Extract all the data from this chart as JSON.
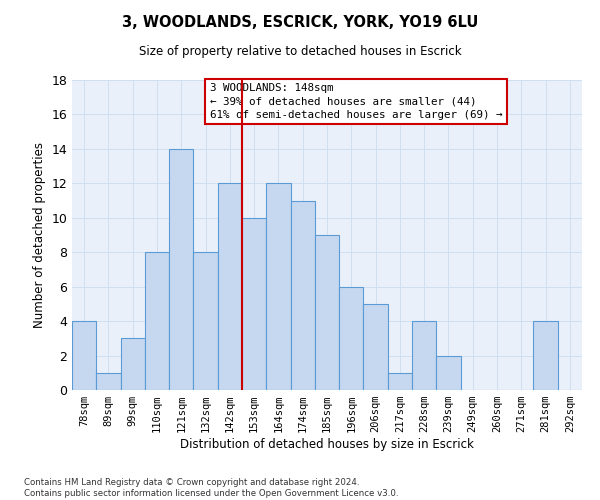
{
  "title1": "3, WOODLANDS, ESCRICK, YORK, YO19 6LU",
  "title2": "Size of property relative to detached houses in Escrick",
  "xlabel": "Distribution of detached houses by size in Escrick",
  "ylabel": "Number of detached properties",
  "bar_labels": [
    "78sqm",
    "89sqm",
    "99sqm",
    "110sqm",
    "121sqm",
    "132sqm",
    "142sqm",
    "153sqm",
    "164sqm",
    "174sqm",
    "185sqm",
    "196sqm",
    "206sqm",
    "217sqm",
    "228sqm",
    "239sqm",
    "249sqm",
    "260sqm",
    "271sqm",
    "281sqm",
    "292sqm"
  ],
  "bar_values": [
    4,
    1,
    3,
    8,
    14,
    8,
    12,
    10,
    12,
    11,
    9,
    6,
    5,
    1,
    4,
    2,
    0,
    0,
    0,
    4,
    0
  ],
  "bar_color": "#c5d8f0",
  "bar_edgecolor": "#5a9ad5",
  "vline_position": 6.5,
  "vline_color": "#cc0000",
  "annotation_text": "3 WOODLANDS: 148sqm\n← 39% of detached houses are smaller (44)\n61% of semi-detached houses are larger (69) →",
  "annotation_box_edgecolor": "#cc0000",
  "ylim": [
    0,
    18
  ],
  "yticks": [
    0,
    2,
    4,
    6,
    8,
    10,
    12,
    14,
    16,
    18
  ],
  "grid_color": "#d0dff0",
  "bg_color": "#eaf0fa",
  "footnote": "Contains HM Land Registry data © Crown copyright and database right 2024.\nContains public sector information licensed under the Open Government Licence v3.0."
}
